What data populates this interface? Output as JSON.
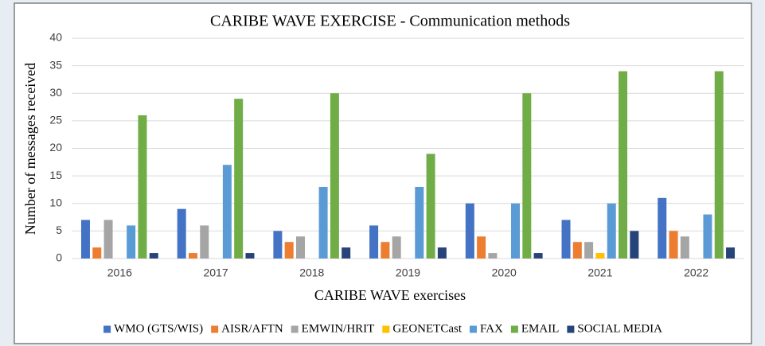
{
  "chart_data": {
    "type": "bar",
    "title": "CARIBE WAVE EXERCISE - Communication methods",
    "x_label": "CARIBE WAVE  exercises",
    "y_label": "Number of messages received",
    "categories": [
      "2016",
      "2017",
      "2018",
      "2019",
      "2020",
      "2021",
      "2022"
    ],
    "series": [
      {
        "name": "WMO (GTS/WIS)",
        "color": "#4472c4",
        "values": [
          7,
          9,
          5,
          6,
          10,
          7,
          11
        ]
      },
      {
        "name": "AISR/AFTN",
        "color": "#ed7d31",
        "values": [
          2,
          1,
          3,
          3,
          4,
          3,
          5
        ]
      },
      {
        "name": "EMWIN/HRIT",
        "color": "#a5a5a5",
        "values": [
          7,
          6,
          4,
          4,
          1,
          3,
          4
        ]
      },
      {
        "name": "GEONETCast",
        "color": "#ffc000",
        "values": [
          0,
          0,
          0,
          0,
          0,
          1,
          0
        ]
      },
      {
        "name": "FAX",
        "color": "#5b9bd5",
        "values": [
          6,
          17,
          13,
          13,
          10,
          10,
          8
        ]
      },
      {
        "name": "EMAIL",
        "color": "#70ad47",
        "values": [
          26,
          29,
          30,
          19,
          30,
          34,
          34
        ]
      },
      {
        "name": "SOCIAL MEDIA",
        "color": "#264478",
        "values": [
          1,
          1,
          2,
          2,
          1,
          5,
          2
        ]
      }
    ],
    "ylim": [
      0,
      40
    ],
    "yticks": [
      0,
      5,
      10,
      15,
      20,
      25,
      30,
      35,
      40
    ],
    "grid": true,
    "legend": "bottom"
  }
}
